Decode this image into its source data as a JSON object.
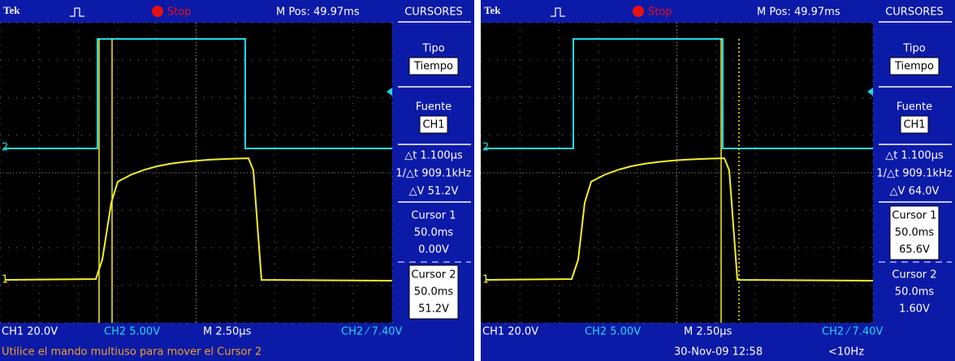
{
  "screens": [
    {
      "header": {
        "brand": "Tek",
        "status": "Stop",
        "m_pos": "M Pos: 49.97ms",
        "menu_title": "CURSORES"
      },
      "menu": {
        "tipo_label": "Tipo",
        "tipo_value": "Tiempo",
        "fuente_label": "Fuente",
        "fuente_value": "CH1",
        "delta_t": "△t 1.100µs",
        "inv_delta_t": "1/△t 909.1kHz",
        "delta_v": "△V 51.2V",
        "cursor1": {
          "label": "Cursor 1",
          "time": "50.0ms",
          "volt": "0.00V"
        },
        "cursor2": {
          "label": "Cursor 2",
          "time": "50.0ms",
          "volt": "51.2V"
        },
        "active_cursor": 2
      },
      "markers": {
        "ch1": "1",
        "ch2": "2"
      },
      "footer": {
        "ch1": "CH1  20.0V",
        "ch2": "CH2  5.00V",
        "timebase": "M 2.50µs",
        "trigger": "CH2 ⁄ 7.40V",
        "message": "Utilice el mando multiuso para mover el Cursor 2"
      }
    },
    {
      "header": {
        "brand": "Tek",
        "status": "Stop",
        "m_pos": "M Pos: 49.97ms",
        "menu_title": "CURSORES"
      },
      "menu": {
        "tipo_label": "Tipo",
        "tipo_value": "Tiempo",
        "fuente_label": "Fuente",
        "fuente_value": "CH1",
        "delta_t": "△t 1.100µs",
        "inv_delta_t": "1/△t 909.1kHz",
        "delta_v": "△V 64.0V",
        "cursor1": {
          "label": "Cursor 1",
          "time": "50.0ms",
          "volt": "65.6V"
        },
        "cursor2": {
          "label": "Cursor 2",
          "time": "50.0ms",
          "volt": "1.60V"
        },
        "active_cursor": 1
      },
      "markers": {
        "ch1": "1",
        "ch2": "2"
      },
      "footer": {
        "ch1": "CH1  20.0V",
        "ch2": "CH2  5.00V",
        "timebase": "M 2.50µs",
        "trigger": "CH2 ⁄ 7.40V",
        "date": "30-Nov-09 12:58",
        "frequency": "<10Hz"
      }
    }
  ]
}
